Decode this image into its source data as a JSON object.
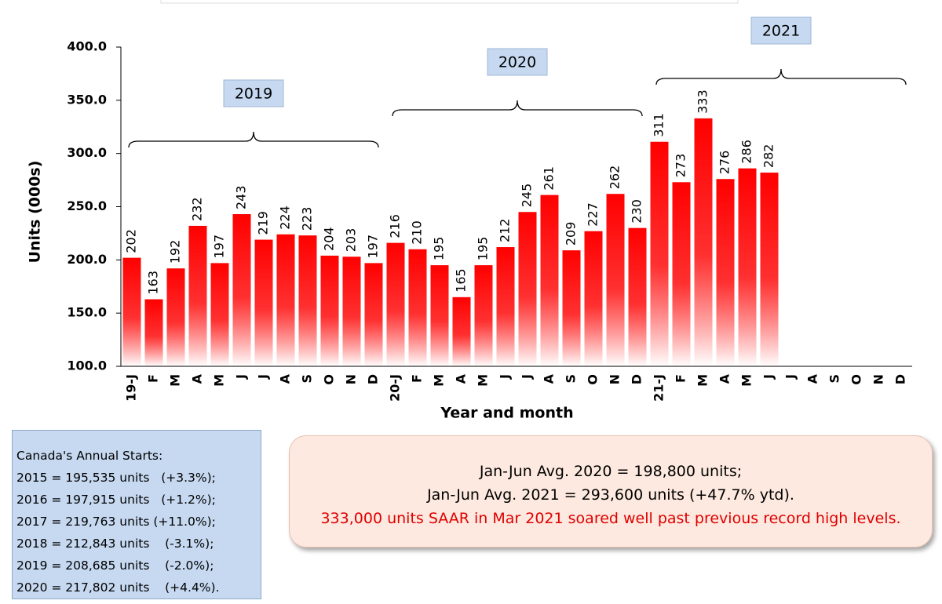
{
  "chart_data": {
    "type": "bar",
    "y_label": "Units (000s)",
    "x_label": "Year and month",
    "categories": [
      "19-J",
      "F",
      "M",
      "A",
      "M",
      "J",
      "J",
      "A",
      "S",
      "O",
      "N",
      "D",
      "20-J",
      "F",
      "M",
      "A",
      "M",
      "J",
      "J",
      "A",
      "S",
      "O",
      "N",
      "D",
      "21-J",
      "F",
      "M",
      "A",
      "M",
      "J",
      "J",
      "A",
      "S",
      "O",
      "N",
      "D"
    ],
    "values": [
      202,
      163,
      192,
      232,
      197,
      243,
      219,
      224,
      223,
      204,
      203,
      197,
      216,
      210,
      195,
      165,
      195,
      212,
      245,
      261,
      209,
      227,
      262,
      230,
      311,
      273,
      333,
      276,
      286,
      282,
      null,
      null,
      null,
      null,
      null,
      null
    ],
    "color": "#ff0000",
    "ylim": [
      100,
      400
    ],
    "yticks": [
      {
        "value": 100,
        "label": "100.0"
      },
      {
        "value": 150,
        "label": "150.0"
      },
      {
        "value": 200,
        "label": "200.0"
      },
      {
        "value": 250,
        "label": "250.0"
      },
      {
        "value": 300,
        "label": "300.0"
      },
      {
        "value": 350,
        "label": "350.0"
      },
      {
        "value": 400,
        "label": "400.0"
      }
    ],
    "year_groups": [
      "2019",
      "2020",
      "2021"
    ]
  },
  "left_box": {
    "lines": [
      "Canada's Annual Starts:",
      "2015 = 195,535 units   (+3.3%);",
      "2016 = 197,915 units   (+1.2%);",
      "2017 = 219,763 units (+11.0%);",
      "2018 = 212,843 units    (-3.1%);",
      "2019 = 208,685 units    (-2.0%);",
      "2020 = 217,802 units    (+4.4%)."
    ]
  },
  "right_box": {
    "lines": [
      "Jan-Jun Avg. 2020 = 198,800 units;",
      "Jan-Jun Avg. 2021 = 293,600 units (+47.7% ytd).",
      "333,000 units SAAR in Mar 2021 soared well past previous record high levels."
    ]
  }
}
